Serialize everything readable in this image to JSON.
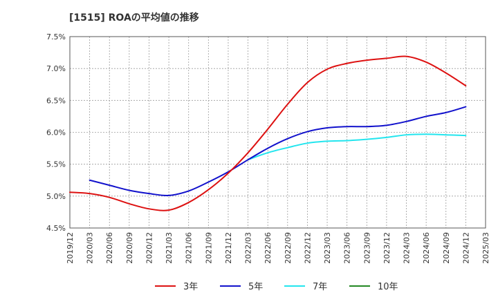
{
  "chart_data": {
    "type": "line",
    "title": "[1515]  ROAの平均値の推移",
    "xlabel": "",
    "ylabel": "",
    "ylim": [
      4.5,
      7.5
    ],
    "yticks": [
      4.5,
      5.0,
      5.5,
      6.0,
      6.5,
      7.0,
      7.5
    ],
    "ytick_labels": [
      "4.5%",
      "5.0%",
      "5.5%",
      "6.0%",
      "6.5%",
      "7.0%",
      "7.5%"
    ],
    "x_categories": [
      "2019/12",
      "2020/03",
      "2020/06",
      "2020/09",
      "2020/12",
      "2021/03",
      "2021/06",
      "2021/09",
      "2021/12",
      "2022/03",
      "2022/06",
      "2022/09",
      "2022/12",
      "2023/03",
      "2023/06",
      "2023/09",
      "2023/12",
      "2024/03",
      "2024/06",
      "2024/09",
      "2024/12",
      "2025/03"
    ],
    "grid": true,
    "legend_position": "bottom",
    "series": [
      {
        "name": "3年",
        "color": "#dd1111",
        "values": [
          5.06,
          5.04,
          4.98,
          4.88,
          4.8,
          4.78,
          4.9,
          5.1,
          5.36,
          5.68,
          6.05,
          6.44,
          6.78,
          6.99,
          7.08,
          7.13,
          7.16,
          7.19,
          7.1,
          6.93,
          6.73,
          null
        ]
      },
      {
        "name": "5年",
        "color": "#1111cc",
        "values": [
          null,
          5.25,
          5.17,
          5.09,
          5.04,
          5.01,
          5.08,
          5.22,
          5.38,
          5.57,
          5.75,
          5.9,
          6.01,
          6.07,
          6.09,
          6.09,
          6.11,
          6.17,
          6.25,
          6.31,
          6.4,
          null
        ]
      },
      {
        "name": "7年",
        "color": "#22e5ee",
        "values": [
          null,
          null,
          null,
          null,
          null,
          null,
          null,
          null,
          null,
          5.57,
          5.68,
          5.76,
          5.83,
          5.86,
          5.87,
          5.89,
          5.92,
          5.96,
          5.97,
          5.96,
          5.95,
          null
        ]
      },
      {
        "name": "10年",
        "color": "#228822",
        "values": [
          null,
          null,
          null,
          null,
          null,
          null,
          null,
          null,
          null,
          null,
          null,
          null,
          null,
          null,
          null,
          null,
          null,
          null,
          null,
          null,
          null,
          null
        ]
      }
    ]
  }
}
